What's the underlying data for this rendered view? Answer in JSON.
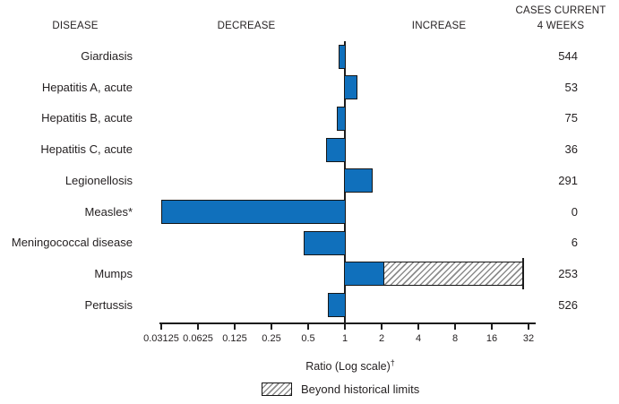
{
  "header": {
    "disease": "DISEASE",
    "decrease": "DECREASE",
    "increase": "INCREASE",
    "cases_line1": "CASES CURRENT",
    "cases_line2": "4 WEEKS"
  },
  "axis": {
    "label": "Ratio (Log scale)",
    "dagger": "†",
    "ticks": [
      "0.03125",
      "0.0625",
      "0.125",
      "0.25",
      "0.5",
      "1",
      "2",
      "4",
      "8",
      "16",
      "32"
    ]
  },
  "legend": {
    "beyond_label": "Beyond historical limits"
  },
  "colors": {
    "bar_blue": "#1070bc",
    "outline": "#161616",
    "hatch_line": "#8c8c8c"
  },
  "chart_data": {
    "type": "bar",
    "orientation": "horizontal",
    "scale": "log2",
    "xlabel": "Ratio (Log scale)†",
    "xlim": [
      0.03125,
      32
    ],
    "baseline": 1,
    "tick_values": [
      0.03125,
      0.0625,
      0.125,
      0.25,
      0.5,
      1,
      2,
      4,
      8,
      16,
      32
    ],
    "legend": [
      "Beyond historical limits"
    ],
    "rows": [
      {
        "disease": "Giardiasis",
        "ratio": 0.89,
        "cases": "544"
      },
      {
        "disease": "Hepatitis A, acute",
        "ratio": 1.27,
        "cases": "53"
      },
      {
        "disease": "Hepatitis B, acute",
        "ratio": 0.86,
        "cases": "75"
      },
      {
        "disease": "Hepatitis C, acute",
        "ratio": 0.7,
        "cases": "36"
      },
      {
        "disease": "Legionellosis",
        "ratio": 1.68,
        "cases": "291"
      },
      {
        "disease": "Measles*",
        "ratio": 0.03125,
        "cases": "0"
      },
      {
        "disease": "Meningococcal disease",
        "ratio": 0.46,
        "cases": "6"
      },
      {
        "disease": "Mumps",
        "ratio": 2.1,
        "beyond_ratio": 29,
        "cases": "253"
      },
      {
        "disease": "Pertussis",
        "ratio": 0.72,
        "cases": "526"
      }
    ]
  }
}
